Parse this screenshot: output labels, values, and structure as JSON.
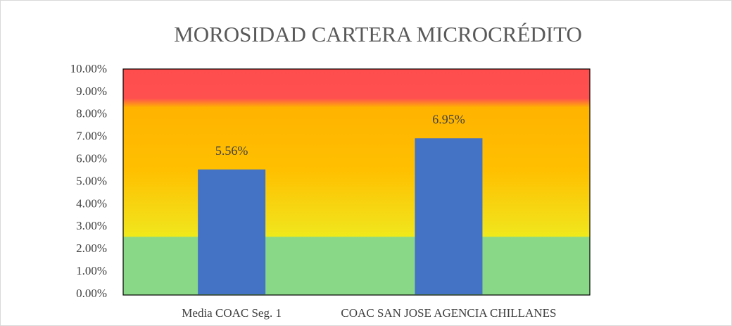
{
  "chart_data": {
    "type": "bar",
    "title": "MOROSIDAD CARTERA MICROCRÉDITO",
    "categories": [
      "Media COAC Seg. 1",
      "COAC SAN JOSE  AGENCIA CHILLANES"
    ],
    "values": [
      5.56,
      6.95
    ],
    "value_labels": [
      "5.56%",
      "6.95%"
    ],
    "color": "#4472c4",
    "ylim": [
      0,
      10
    ],
    "yticks": [
      {
        "value": 0,
        "label": "0.00%"
      },
      {
        "value": 1,
        "label": "1.00%"
      },
      {
        "value": 2,
        "label": "2.00%"
      },
      {
        "value": 3,
        "label": "3.00%"
      },
      {
        "value": 4,
        "label": "4.00%"
      },
      {
        "value": 5,
        "label": "5.00%"
      },
      {
        "value": 6,
        "label": "6.00%"
      },
      {
        "value": 7,
        "label": "7.00%"
      },
      {
        "value": 8,
        "label": "8.00%"
      },
      {
        "value": 9,
        "label": "9.00%"
      },
      {
        "value": 10,
        "label": "10.00%"
      }
    ],
    "grid": false
  }
}
